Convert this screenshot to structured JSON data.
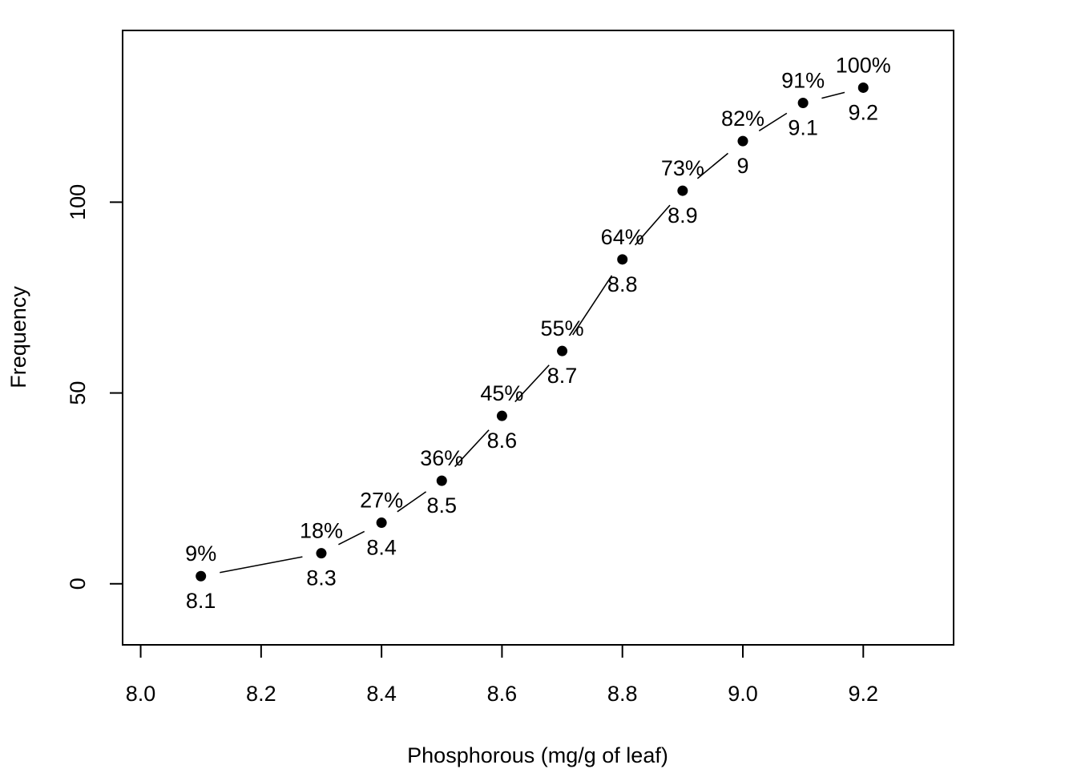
{
  "chart_data": {
    "type": "line",
    "title": "",
    "xlabel": "Phosphorous (mg/g of leaf)",
    "ylabel": "Frequency",
    "xlim": [
      7.97,
      9.35
    ],
    "ylim": [
      -16,
      145
    ],
    "x_ticks": [
      "8.0",
      "8.2",
      "8.4",
      "8.6",
      "8.8",
      "9.0",
      "9.2"
    ],
    "y_ticks": [
      "0",
      "50",
      "100"
    ],
    "grid": false,
    "series": [
      {
        "x": [
          8.1,
          8.3,
          8.4,
          8.5,
          8.6,
          8.7,
          8.8,
          8.9,
          9.0,
          9.1,
          9.2
        ],
        "y": [
          2,
          8,
          16,
          27,
          44,
          61,
          85,
          103,
          116,
          126,
          130
        ],
        "x_labels": [
          "8.1",
          "8.3",
          "8.4",
          "8.5",
          "8.6",
          "8.7",
          "8.8",
          "8.9",
          "9",
          "9.1",
          "9.2"
        ],
        "pct_labels": [
          "9%",
          "18%",
          "27%",
          "36%",
          "45%",
          "55%",
          "64%",
          "73%",
          "82%",
          "91%",
          "100%"
        ]
      }
    ],
    "colors": {
      "line": "#000000",
      "point": "#000000"
    }
  }
}
